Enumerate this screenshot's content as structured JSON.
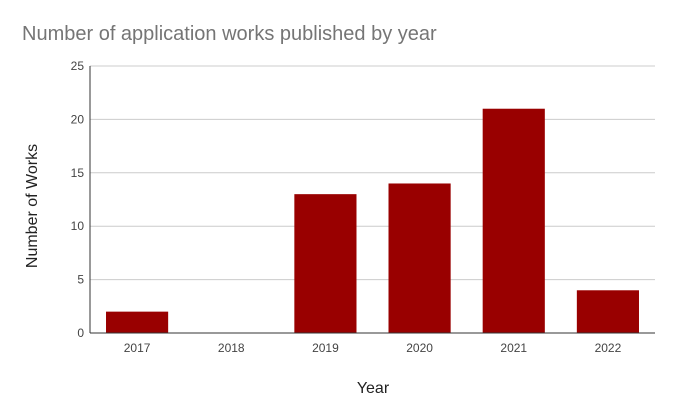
{
  "chart_data": {
    "type": "bar",
    "title": "Number of application works published by year",
    "xlabel": "Year",
    "ylabel": "Number of Works",
    "categories": [
      "2017",
      "2018",
      "2019",
      "2020",
      "2021",
      "2022"
    ],
    "values": [
      2,
      0,
      13,
      14,
      21,
      4
    ],
    "ylim": [
      0,
      25
    ],
    "yticks": [
      0,
      5,
      10,
      15,
      20,
      25
    ],
    "grid": true,
    "legend": "none",
    "bar_color": "#990000"
  }
}
